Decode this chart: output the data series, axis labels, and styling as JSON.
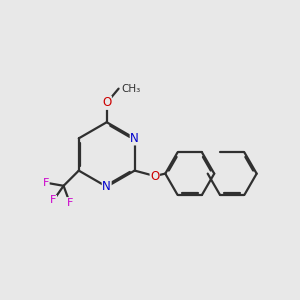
{
  "background_color": "#e8e8e8",
  "bond_color": "#303030",
  "nitrogen_color": "#0000cc",
  "oxygen_color": "#cc0000",
  "fluorine_color": "#cc00cc",
  "line_width": 1.6,
  "figsize": [
    3.0,
    3.0
  ],
  "dpi": 100,
  "xlim": [
    0.0,
    10.0
  ],
  "ylim": [
    1.5,
    9.5
  ]
}
